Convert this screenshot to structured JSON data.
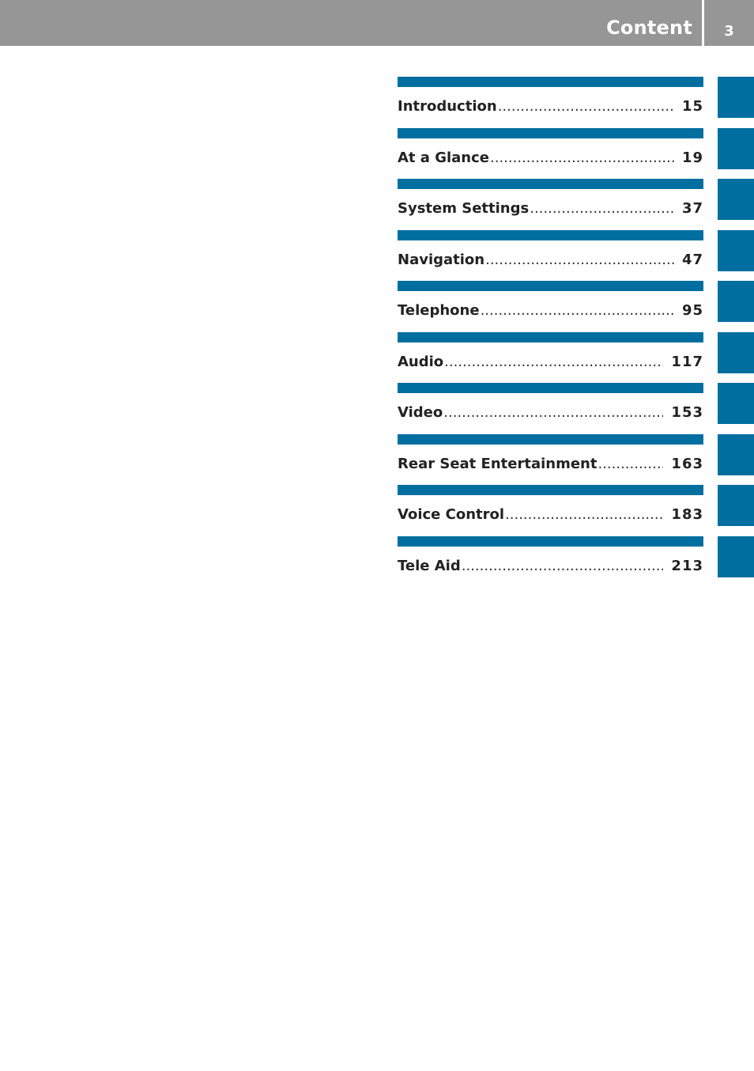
{
  "header": {
    "title": "Content",
    "page_number": "3",
    "background_color": "#969696"
  },
  "accent_color": "#006fa0",
  "toc": [
    {
      "label": "Introduction",
      "dots": "..........................................................",
      "page": "15"
    },
    {
      "label": "At a Glance",
      "dots": "..........................................................",
      "page": "19"
    },
    {
      "label": "System Settings",
      "dots": "..........................................................",
      "page": "37"
    },
    {
      "label": "Navigation",
      "dots": "..........................................................",
      "page": "47"
    },
    {
      "label": "Telephone",
      "dots": "..........................................................",
      "page": "95"
    },
    {
      "label": "Audio",
      "dots": "..........................................................",
      "page": "117"
    },
    {
      "label": "Video",
      "dots": "..........................................................",
      "page": "153"
    },
    {
      "label": "Rear Seat Entertainment",
      "dots": "..........................................................",
      "page": "163"
    },
    {
      "label": "Voice Control",
      "dots": "..........................................................",
      "page": "183"
    },
    {
      "label": "Tele Aid",
      "dots": "..........................................................",
      "page": "213"
    }
  ]
}
